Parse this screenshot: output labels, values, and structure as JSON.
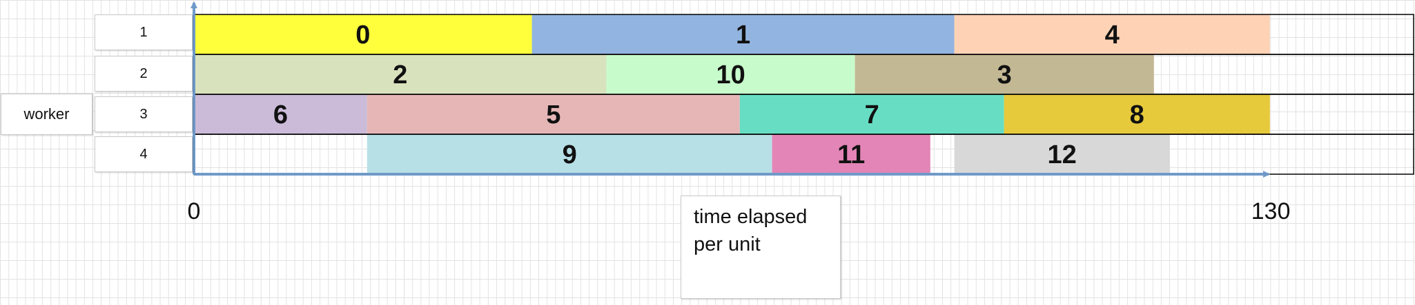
{
  "chart_data": {
    "type": "gantt",
    "ylabel": "worker",
    "xlabel_lines": [
      "time elapsed",
      "per unit"
    ],
    "workers": [
      "1",
      "2",
      "3",
      "4"
    ],
    "x_ticks": [
      0,
      130
    ],
    "xlim": [
      0,
      148
    ],
    "tasks": [
      {
        "id": "0",
        "worker": 1,
        "start": 0,
        "end": 40.8,
        "color": "#ffff3c"
      },
      {
        "id": "1",
        "worker": 1,
        "start": 40.8,
        "end": 91.8,
        "color": "#92b4e0"
      },
      {
        "id": "4",
        "worker": 1,
        "start": 91.8,
        "end": 129.9,
        "color": "#fdd2b5"
      },
      {
        "id": "2",
        "worker": 2,
        "start": 0,
        "end": 49.8,
        "color": "#d8e2bd"
      },
      {
        "id": "10",
        "worker": 2,
        "start": 49.8,
        "end": 79.8,
        "color": "#c8fbcc"
      },
      {
        "id": "3",
        "worker": 2,
        "start": 79.8,
        "end": 115.9,
        "color": "#c3b894"
      },
      {
        "id": "6",
        "worker": 3,
        "start": 0,
        "end": 20.9,
        "color": "#cbbbd9"
      },
      {
        "id": "5",
        "worker": 3,
        "start": 20.9,
        "end": 65.9,
        "color": "#e6b6b6"
      },
      {
        "id": "7",
        "worker": 3,
        "start": 65.9,
        "end": 97.8,
        "color": "#67dec3"
      },
      {
        "id": "8",
        "worker": 3,
        "start": 97.8,
        "end": 129.9,
        "color": "#e6ca3c"
      },
      {
        "id": "9",
        "worker": 4,
        "start": 20.9,
        "end": 69.8,
        "color": "#b7dfe6"
      },
      {
        "id": "11",
        "worker": 4,
        "start": 69.8,
        "end": 88.9,
        "color": "#e385b6"
      },
      {
        "id": "12",
        "worker": 4,
        "start": 91.8,
        "end": 117.8,
        "color": "#d8d8d8"
      }
    ],
    "colors": {
      "axis": "#6f9ac9",
      "row_border": "#000000"
    }
  }
}
